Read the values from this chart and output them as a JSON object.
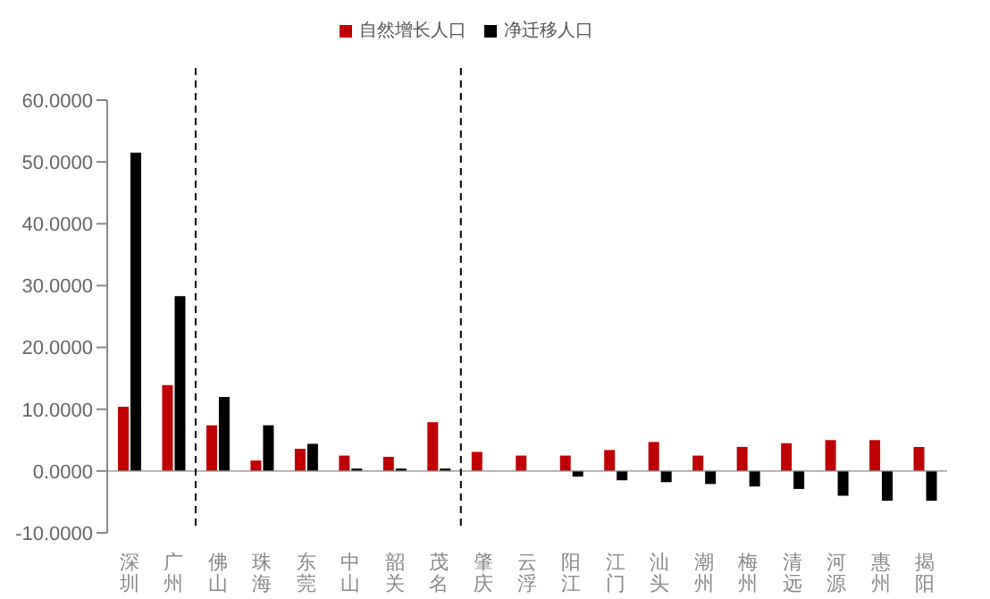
{
  "chart_data": {
    "type": "bar",
    "categories": [
      "深圳",
      "广州",
      "佛山",
      "珠海",
      "东莞",
      "中山",
      "韶关",
      "茂名",
      "肇庆",
      "云浮",
      "阳江",
      "江门",
      "汕头",
      "潮州",
      "梅州",
      "清远",
      "河源",
      "惠州",
      "揭阳"
    ],
    "series": [
      {
        "name": "自然增长人口",
        "color": "#c00000",
        "values": [
          10.4,
          13.9,
          7.4,
          1.7,
          3.6,
          2.5,
          2.3,
          7.9,
          3.1,
          2.5,
          2.5,
          3.4,
          4.7,
          2.5,
          3.9,
          4.5,
          5.0,
          5.0,
          3.9
        ]
      },
      {
        "name": "净迁移人口",
        "color": "#000000",
        "values": [
          51.5,
          28.3,
          12.0,
          7.4,
          4.4,
          0.4,
          0.4,
          0.4,
          0,
          0,
          -0.9,
          -1.5,
          -1.8,
          -2.1,
          -2.5,
          -2.9,
          -4.0,
          -4.8,
          -4.8
        ]
      }
    ],
    "ylim": [
      -10,
      60
    ],
    "yticks": [
      {
        "value": -10,
        "label": "-10.0000"
      },
      {
        "value": 0,
        "label": "0.0000"
      },
      {
        "value": 10,
        "label": "10.0000"
      },
      {
        "value": 20,
        "label": "20.0000"
      },
      {
        "value": 30,
        "label": "30.0000"
      },
      {
        "value": 40,
        "label": "40.0000"
      },
      {
        "value": 50,
        "label": "50.0000"
      },
      {
        "value": 60,
        "label": "60.0000"
      }
    ],
    "grid": false,
    "legend": "top"
  }
}
